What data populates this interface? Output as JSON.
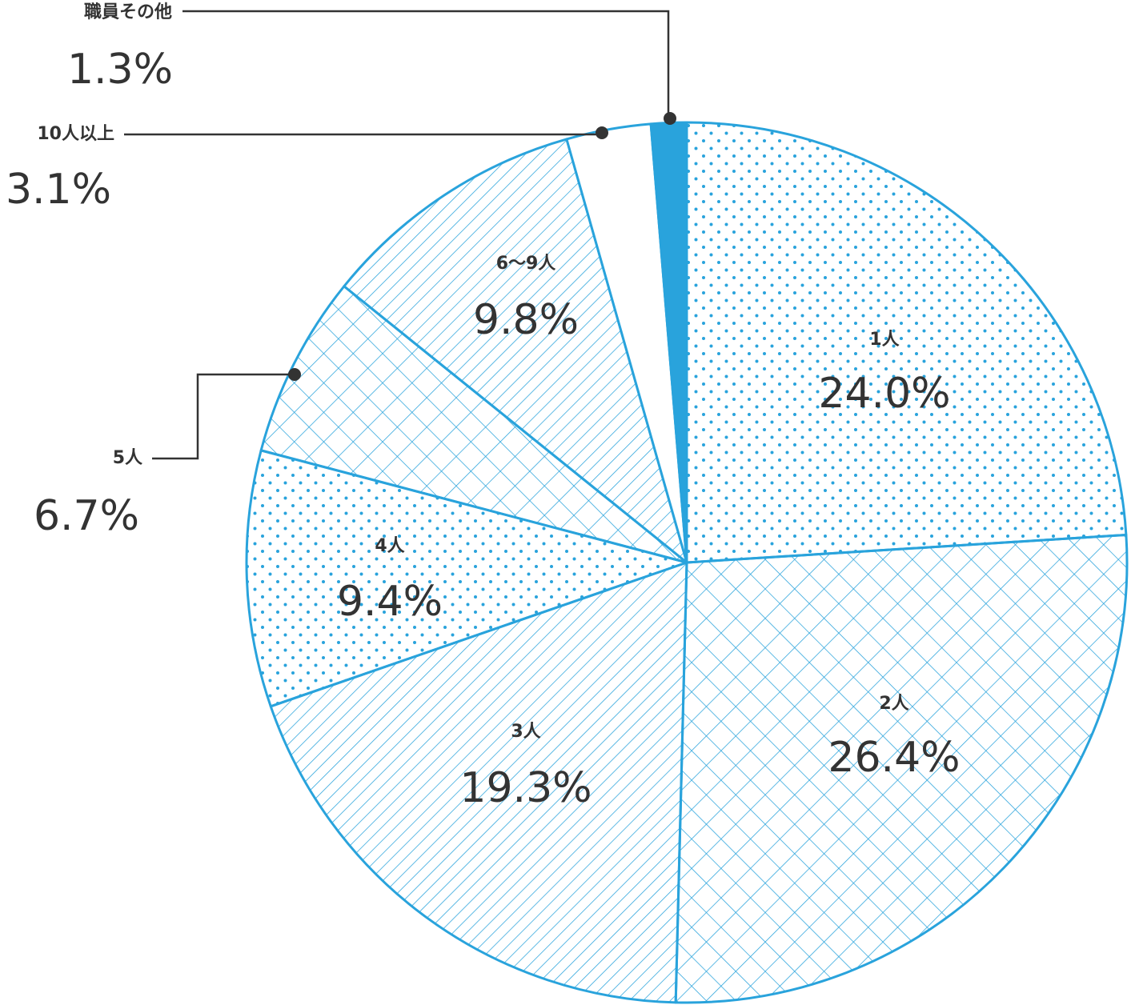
{
  "chart_data": {
    "type": "pie",
    "categories": [
      "1人",
      "2人",
      "3人",
      "4人",
      "5人",
      "6〜9人",
      "10人以上",
      "職員その他"
    ],
    "values": [
      24.0,
      26.4,
      19.3,
      9.4,
      6.7,
      9.8,
      3.1,
      1.3
    ],
    "value_labels": [
      "24.0%",
      "26.4%",
      "19.3%",
      "9.4%",
      "6.7%",
      "9.8%",
      "3.1%",
      "1.3%"
    ],
    "color": "#29a3dc",
    "patterns": [
      "dots",
      "crosshatch",
      "hatch",
      "dots",
      "crosshatch",
      "hatch",
      "none",
      "solid"
    ]
  }
}
